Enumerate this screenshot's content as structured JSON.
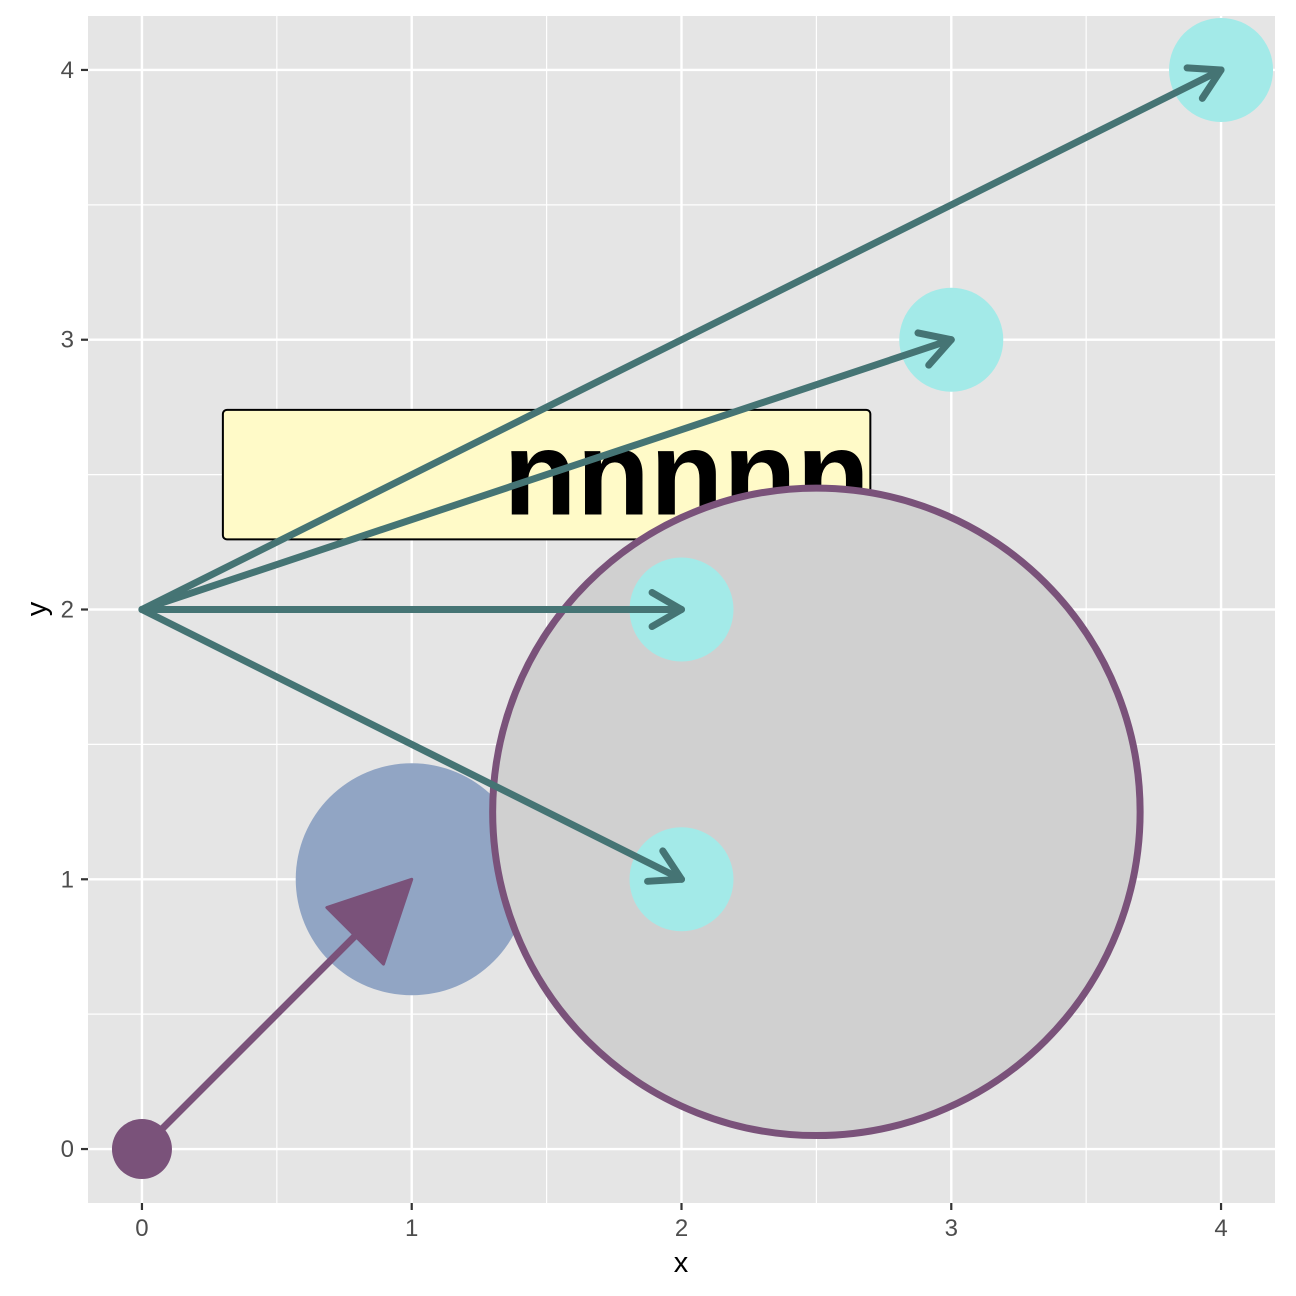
{
  "chart_data": {
    "type": "scatter",
    "title": "",
    "xlabel": "x",
    "ylabel": "y",
    "xlim": [
      -0.2,
      4.2
    ],
    "ylim": [
      -0.2,
      4.2
    ],
    "x_ticks": [
      "0",
      "1",
      "2",
      "3",
      "4"
    ],
    "y_ticks": [
      "0",
      "1",
      "2",
      "3",
      "4"
    ],
    "grid": true,
    "colors": {
      "panel": "#e5e5e5",
      "grid": "#ffffff",
      "target_point": "#a3eae8",
      "segment": "#457474",
      "origin_arrow": "#7a527a",
      "blue_circle": "#91a5c4",
      "big_circle_fill": "#d0d0d0",
      "big_circle_stroke": "#7a527a",
      "label_fill": "#fffac8"
    },
    "points": [
      {
        "x": 0,
        "y": 0
      },
      {
        "x": 2,
        "y": 1
      },
      {
        "x": 2,
        "y": 2
      },
      {
        "x": 3,
        "y": 3
      },
      {
        "x": 4,
        "y": 4
      }
    ],
    "segments": [
      {
        "x": 0,
        "y": 2,
        "xend": 2,
        "yend": 1
      },
      {
        "x": 0,
        "y": 2,
        "xend": 2,
        "yend": 2
      },
      {
        "x": 0,
        "y": 2,
        "xend": 3,
        "yend": 3
      },
      {
        "x": 0,
        "y": 2,
        "xend": 4,
        "yend": 4
      }
    ],
    "origin_arrow": {
      "x": 0,
      "y": 0,
      "xend": 1,
      "yend": 1
    },
    "blue_circle": {
      "x": 1,
      "y": 1,
      "r": 0.43
    },
    "big_circle": {
      "x": 2.5,
      "y": 1.25,
      "r": 1.2
    },
    "label": {
      "text": "nnnnn",
      "x": 1.5,
      "y": 2.5,
      "box": [
        0.3,
        2.26,
        2.7,
        2.74
      ]
    }
  }
}
